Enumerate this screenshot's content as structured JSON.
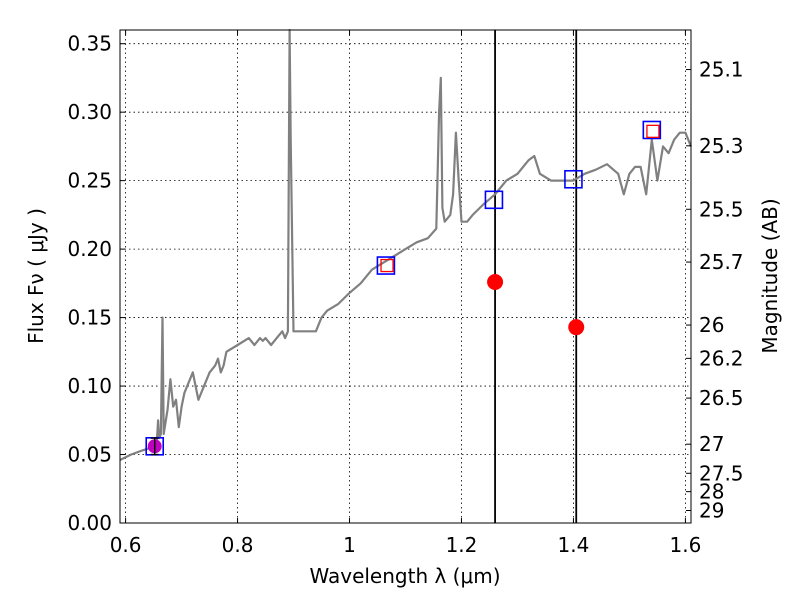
{
  "chart_data": {
    "type": "scatter",
    "xlabel": "Wavelength  λ (μm)",
    "ylabel": "Flux  Fν  ( μJy )",
    "ylabel2": "Magnitude (AB)",
    "xlim": [
      0.59,
      1.61
    ],
    "ylim": [
      0.0,
      0.36
    ],
    "grid": true,
    "x_ticks": [
      0.6,
      0.8,
      1.0,
      1.2,
      1.4,
      1.6
    ],
    "x_tick_labels": [
      "0.6",
      "0.8",
      "1",
      "1.2",
      "1.4",
      "1.6"
    ],
    "y_ticks": [
      0.0,
      0.05,
      0.1,
      0.15,
      0.2,
      0.25,
      0.3,
      0.35
    ],
    "y_tick_labels": [
      "0.00",
      "0.05",
      "0.10",
      "0.15",
      "0.20",
      "0.25",
      "0.30",
      "0.35"
    ],
    "mag_ticks": [
      25.1,
      25.3,
      25.5,
      25.7,
      26,
      26.2,
      26.5,
      27,
      27.5,
      28,
      29
    ],
    "mag_tick_labels": [
      "25.1",
      "25.3",
      "25.5",
      "25.7",
      "26",
      "26.2",
      "26.5",
      "27",
      "27.5",
      "28",
      "29"
    ],
    "vertical_lines": [
      1.26,
      1.405
    ],
    "series": [
      {
        "name": "model spectrum",
        "style": "line",
        "color": "#808080",
        "x": [
          0.59,
          0.61,
          0.63,
          0.645,
          0.652,
          0.656,
          0.658,
          0.66,
          0.663,
          0.666,
          0.668,
          0.675,
          0.68,
          0.685,
          0.69,
          0.695,
          0.7,
          0.705,
          0.71,
          0.72,
          0.73,
          0.74,
          0.75,
          0.76,
          0.765,
          0.77,
          0.775,
          0.78,
          0.8,
          0.82,
          0.83,
          0.84,
          0.845,
          0.85,
          0.86,
          0.87,
          0.88,
          0.885,
          0.89,
          0.893,
          0.895,
          0.9,
          0.92,
          0.94,
          0.95,
          0.96,
          0.98,
          1.0,
          1.02,
          1.04,
          1.06,
          1.08,
          1.1,
          1.12,
          1.14,
          1.155,
          1.16,
          1.163,
          1.166,
          1.17,
          1.18,
          1.185,
          1.19,
          1.195,
          1.2,
          1.21,
          1.22,
          1.24,
          1.26,
          1.28,
          1.3,
          1.32,
          1.33,
          1.34,
          1.36,
          1.38,
          1.4,
          1.42,
          1.44,
          1.46,
          1.48,
          1.49,
          1.5,
          1.51,
          1.52,
          1.53,
          1.54,
          1.55,
          1.56,
          1.57,
          1.58,
          1.59,
          1.6,
          1.61
        ],
        "y": [
          0.046,
          0.05,
          0.053,
          0.055,
          0.058,
          0.06,
          0.075,
          0.062,
          0.065,
          0.15,
          0.065,
          0.083,
          0.105,
          0.085,
          0.09,
          0.07,
          0.085,
          0.095,
          0.1,
          0.11,
          0.09,
          0.1,
          0.11,
          0.115,
          0.12,
          0.11,
          0.115,
          0.125,
          0.13,
          0.135,
          0.13,
          0.135,
          0.133,
          0.135,
          0.13,
          0.135,
          0.14,
          0.135,
          0.14,
          0.36,
          0.28,
          0.14,
          0.14,
          0.14,
          0.15,
          0.155,
          0.16,
          0.168,
          0.175,
          0.185,
          0.19,
          0.195,
          0.2,
          0.205,
          0.208,
          0.215,
          0.3,
          0.325,
          0.23,
          0.22,
          0.225,
          0.24,
          0.285,
          0.25,
          0.22,
          0.22,
          0.225,
          0.233,
          0.24,
          0.25,
          0.255,
          0.265,
          0.268,
          0.255,
          0.25,
          0.25,
          0.25,
          0.255,
          0.258,
          0.262,
          0.255,
          0.24,
          0.255,
          0.26,
          0.26,
          0.24,
          0.28,
          0.25,
          0.275,
          0.27,
          0.28,
          0.285,
          0.285,
          0.275
        ]
      },
      {
        "name": "filter points (blue squares)",
        "style": "marker-square-blue",
        "color": "#0000ff",
        "x": [
          0.652,
          1.065,
          1.258,
          1.4,
          1.54
        ],
        "y": [
          0.056,
          0.188,
          0.236,
          0.251,
          0.287
        ]
      },
      {
        "name": "model synthetic points (red squares)",
        "style": "marker-square-red",
        "color": "#ff0000",
        "x": [
          1.067,
          1.542
        ],
        "y": [
          0.188,
          0.286
        ]
      },
      {
        "name": "observed fluxes",
        "style": "marker-circle-red",
        "color": "#ff0000",
        "x": [
          1.26,
          1.405
        ],
        "y": [
          0.176,
          0.143
        ]
      },
      {
        "name": "detected flux (with error bar)",
        "style": "marker-circle-magenta",
        "color": "#bf00bf",
        "x": [
          0.652
        ],
        "y": [
          0.056
        ],
        "yerr": [
          0.006
        ]
      }
    ]
  }
}
